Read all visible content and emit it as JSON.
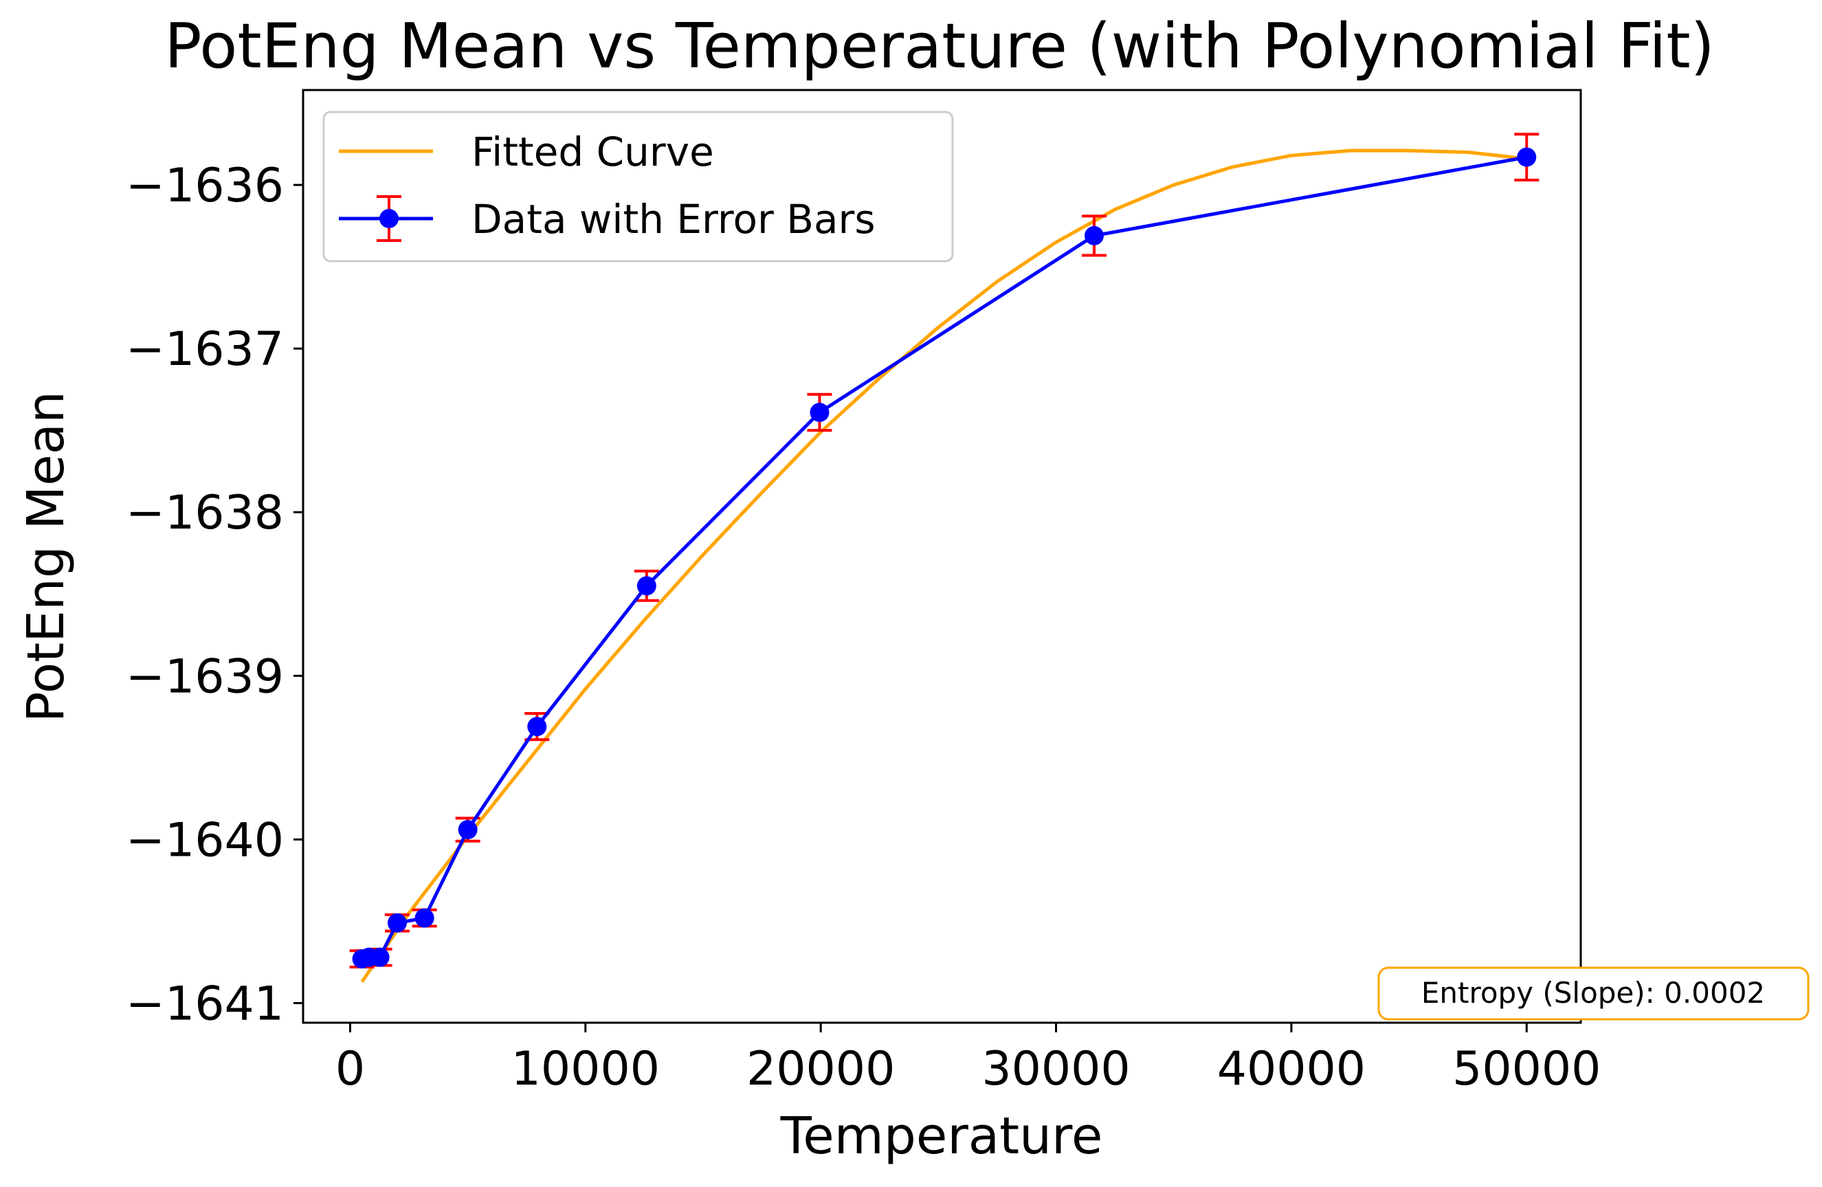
{
  "chart_data": {
    "type": "line",
    "title": "PotEng Mean vs Temperature (with Polynomial Fit)",
    "xlabel": "Temperature",
    "ylabel": "PotEng Mean",
    "xlim": [
      -2000,
      52300
    ],
    "ylim": [
      -1641.12,
      -1635.42
    ],
    "x_ticks": [
      0,
      10000,
      20000,
      30000,
      40000,
      50000
    ],
    "x_tick_labels": [
      "0",
      "10000",
      "20000",
      "30000",
      "40000",
      "50000"
    ],
    "y_ticks": [
      -1641,
      -1640,
      -1639,
      -1638,
      -1637,
      -1636
    ],
    "y_tick_labels": [
      "−1641",
      "−1640",
      "−1639",
      "−1638",
      "−1637",
      "−1636"
    ],
    "grid": false,
    "legend_position": "upper left",
    "series": [
      {
        "name": "Fitted Curve",
        "kind": "line",
        "color": "#FFA500",
        "x": [
          500,
          2500,
          5000,
          7500,
          10000,
          12500,
          15000,
          17500,
          20000,
          22500,
          25000,
          27500,
          30000,
          32500,
          35000,
          37500,
          40000,
          42500,
          45000,
          47500,
          50000
        ],
        "y": [
          -1640.87,
          -1640.45,
          -1639.98,
          -1639.53,
          -1639.08,
          -1638.66,
          -1638.26,
          -1637.88,
          -1637.51,
          -1637.18,
          -1636.87,
          -1636.59,
          -1636.35,
          -1636.15,
          -1636.0,
          -1635.89,
          -1635.82,
          -1635.79,
          -1635.79,
          -1635.8,
          -1635.84
        ]
      },
      {
        "name": "Data with Error Bars",
        "kind": "errorbar",
        "color": "#0000FF",
        "ecolor": "#FF0000",
        "x": [
          500,
          800,
          1260,
          2000,
          3160,
          5000,
          7940,
          12600,
          19950,
          31620,
          50000
        ],
        "y": [
          -1640.73,
          -1640.72,
          -1640.72,
          -1640.51,
          -1640.48,
          -1639.94,
          -1639.31,
          -1638.45,
          -1637.39,
          -1636.31,
          -1635.83
        ],
        "yerr": [
          0.05,
          0.04,
          0.05,
          0.05,
          0.05,
          0.07,
          0.08,
          0.09,
          0.11,
          0.12,
          0.14
        ]
      }
    ],
    "annotation": {
      "text": "Entropy (Slope): 0.0002",
      "edge_color": "#FFA500"
    }
  }
}
